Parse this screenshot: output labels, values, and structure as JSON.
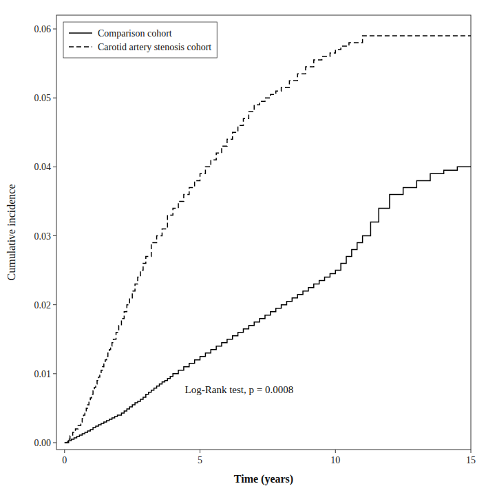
{
  "chart_data": {
    "type": "step",
    "xlabel": "Time (years)",
    "ylabel": "Cumulative incidence",
    "annotation": "Log-Rank test, p = 0.0008",
    "xlim": [
      -0.3,
      15
    ],
    "ylim": [
      -0.001,
      0.062
    ],
    "xticks": [
      0,
      5,
      10,
      15
    ],
    "yticks": [
      {
        "value": 0,
        "label": "0.00"
      },
      0.01,
      0.02,
      0.03,
      0.04,
      0.05,
      0.06
    ],
    "grid": false,
    "legend": "upper-left",
    "series": [
      {
        "name": "Comparison cohort",
        "color": "#000000",
        "line_style": "solid",
        "x": [
          0,
          0.15,
          0.25,
          0.35,
          0.45,
          0.55,
          0.65,
          0.75,
          0.85,
          0.95,
          1.05,
          1.15,
          1.25,
          1.35,
          1.45,
          1.55,
          1.65,
          1.75,
          1.85,
          1.95,
          2.1,
          2.2,
          2.3,
          2.4,
          2.5,
          2.6,
          2.7,
          2.8,
          2.9,
          3.0,
          3.1,
          3.2,
          3.3,
          3.4,
          3.5,
          3.6,
          3.7,
          3.8,
          3.9,
          4.0,
          4.2,
          4.4,
          4.6,
          4.8,
          5.0,
          5.2,
          5.4,
          5.6,
          5.8,
          6.0,
          6.2,
          6.4,
          6.6,
          6.8,
          7.0,
          7.2,
          7.4,
          7.6,
          7.8,
          8.0,
          8.2,
          8.4,
          8.6,
          8.8,
          9.0,
          9.2,
          9.4,
          9.6,
          9.8,
          10.0,
          10.2,
          10.4,
          10.6,
          10.8,
          11.0,
          11.3,
          11.6,
          12.0,
          12.5,
          13.0,
          13.5,
          14.0,
          14.5,
          15.0
        ],
        "values": [
          0.0,
          0.0003,
          0.0005,
          0.0007,
          0.0009,
          0.0011,
          0.0013,
          0.0015,
          0.0017,
          0.0019,
          0.0022,
          0.0024,
          0.0026,
          0.0028,
          0.003,
          0.0032,
          0.0034,
          0.0036,
          0.0038,
          0.004,
          0.0043,
          0.0046,
          0.0049,
          0.0052,
          0.0055,
          0.0058,
          0.006,
          0.0063,
          0.0066,
          0.007,
          0.0073,
          0.0076,
          0.0079,
          0.0082,
          0.0085,
          0.0088,
          0.009,
          0.0093,
          0.0096,
          0.01,
          0.0105,
          0.011,
          0.0115,
          0.012,
          0.0125,
          0.013,
          0.0135,
          0.014,
          0.0145,
          0.015,
          0.0155,
          0.016,
          0.0165,
          0.017,
          0.0175,
          0.018,
          0.0185,
          0.019,
          0.0195,
          0.02,
          0.0205,
          0.021,
          0.0215,
          0.022,
          0.0225,
          0.023,
          0.0235,
          0.024,
          0.0245,
          0.025,
          0.026,
          0.027,
          0.028,
          0.029,
          0.03,
          0.032,
          0.034,
          0.036,
          0.037,
          0.038,
          0.039,
          0.0395,
          0.04,
          0.04
        ]
      },
      {
        "name": "Carotid artery stenosis cohort",
        "color": "#000000",
        "line_style": "dashed",
        "x": [
          0,
          0.1,
          0.2,
          0.3,
          0.4,
          0.5,
          0.6,
          0.65,
          0.7,
          0.75,
          0.8,
          0.85,
          0.9,
          0.95,
          1.0,
          1.05,
          1.1,
          1.15,
          1.2,
          1.25,
          1.3,
          1.35,
          1.4,
          1.45,
          1.5,
          1.55,
          1.6,
          1.65,
          1.7,
          1.75,
          1.8,
          1.9,
          2.0,
          2.1,
          2.2,
          2.3,
          2.4,
          2.5,
          2.6,
          2.7,
          2.8,
          2.9,
          3.0,
          3.2,
          3.4,
          3.6,
          3.8,
          4.0,
          4.2,
          4.4,
          4.6,
          4.8,
          5.0,
          5.2,
          5.4,
          5.6,
          5.8,
          6.0,
          6.2,
          6.4,
          6.6,
          6.8,
          7.0,
          7.2,
          7.4,
          7.6,
          7.8,
          8.0,
          8.3,
          8.6,
          8.9,
          9.2,
          9.5,
          9.8,
          10.0,
          10.2,
          10.5,
          11.0,
          11.3,
          14.5,
          15.0
        ],
        "values": [
          0.0,
          0.0005,
          0.001,
          0.0015,
          0.002,
          0.0025,
          0.003,
          0.0035,
          0.004,
          0.0045,
          0.005,
          0.0055,
          0.006,
          0.0065,
          0.007,
          0.0075,
          0.008,
          0.0085,
          0.009,
          0.0095,
          0.01,
          0.0105,
          0.011,
          0.0115,
          0.012,
          0.0125,
          0.013,
          0.0135,
          0.014,
          0.0145,
          0.015,
          0.016,
          0.017,
          0.018,
          0.019,
          0.02,
          0.021,
          0.022,
          0.023,
          0.024,
          0.025,
          0.026,
          0.027,
          0.029,
          0.03,
          0.031,
          0.033,
          0.034,
          0.035,
          0.036,
          0.037,
          0.038,
          0.039,
          0.04,
          0.041,
          0.042,
          0.043,
          0.044,
          0.045,
          0.046,
          0.047,
          0.048,
          0.049,
          0.0495,
          0.05,
          0.0505,
          0.051,
          0.0515,
          0.0525,
          0.0535,
          0.0545,
          0.0555,
          0.056,
          0.0565,
          0.057,
          0.0575,
          0.058,
          0.059,
          0.059,
          0.059,
          0.059
        ]
      }
    ]
  }
}
